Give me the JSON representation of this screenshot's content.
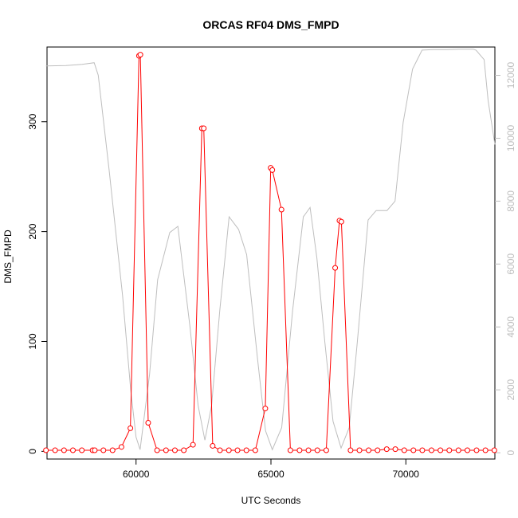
{
  "chart_data": {
    "type": "line",
    "title": "ORCAS RF04 DMS_FMPD",
    "xlabel": "UTC Seconds",
    "ylabel": "DMS_FMPD",
    "xlim": [
      56700,
      73300
    ],
    "ylim": [
      -7,
      368
    ],
    "y2lim": [
      -200,
      12900
    ],
    "x_ticks": [
      60000,
      65000,
      70000
    ],
    "y_ticks": [
      0,
      100,
      200,
      300
    ],
    "y2_ticks": [
      0,
      2000,
      4000,
      6000,
      8000,
      10000,
      12000
    ],
    "grid": false,
    "series": [
      {
        "color": "#ff0000",
        "axis": "left",
        "marker": "circle",
        "x": [
          56660,
          57000,
          57330,
          57660,
          57990,
          58390,
          58470,
          58790,
          59130,
          59460,
          59790,
          60110,
          60160,
          60450,
          60780,
          61110,
          61440,
          61770,
          62110,
          62440,
          62510,
          62840,
          63110,
          63440,
          63760,
          64090,
          64420,
          64790,
          64990,
          65050,
          65390,
          65720,
          66060,
          66390,
          66720,
          67050,
          67380,
          67540,
          67610,
          67950,
          68280,
          68620,
          68950,
          69290,
          69610,
          69940,
          70280,
          70610,
          70950,
          71280,
          71610,
          71950,
          72280,
          72620,
          72950,
          73280
        ],
        "y": [
          1,
          1,
          1,
          1,
          1,
          1,
          1,
          1,
          1,
          4,
          21,
          360,
          361,
          26,
          1,
          1,
          1,
          1,
          6,
          294,
          294,
          5,
          1,
          1,
          1,
          1,
          1,
          39,
          258,
          256,
          220,
          1,
          1,
          1,
          1,
          1,
          167,
          210,
          209,
          1,
          1,
          1,
          1,
          2,
          2,
          1,
          1,
          1,
          1,
          1,
          1,
          1,
          1,
          1,
          1,
          1
        ]
      },
      {
        "color": "#bebebe",
        "axis": "right",
        "marker": "none",
        "x": [
          56660,
          57400,
          58000,
          58450,
          58600,
          59000,
          59500,
          59800,
          60000,
          60150,
          60500,
          60800,
          61250,
          61550,
          62000,
          62300,
          62550,
          62800,
          63100,
          63450,
          63800,
          64100,
          64500,
          64800,
          65050,
          65400,
          65800,
          66200,
          66450,
          66700,
          67000,
          67300,
          67600,
          67900,
          68200,
          68600,
          68900,
          69300,
          69600,
          69900,
          70250,
          70600,
          71000,
          71500,
          72000,
          72500,
          72600,
          72900,
          73050,
          73300
        ],
        "y": [
          12300,
          12310,
          12350,
          12400,
          12000,
          9000,
          5000,
          2000,
          500,
          100,
          2500,
          5500,
          7000,
          7200,
          4000,
          1500,
          400,
          1500,
          4500,
          7500,
          7100,
          6300,
          3000,
          700,
          100,
          800,
          4500,
          7500,
          7800,
          6200,
          3500,
          1000,
          150,
          800,
          3500,
          7400,
          7700,
          7700,
          8000,
          10500,
          12200,
          12800,
          12820,
          12820,
          12830,
          12830,
          12800,
          12500,
          11200,
          9800
        ]
      }
    ]
  }
}
